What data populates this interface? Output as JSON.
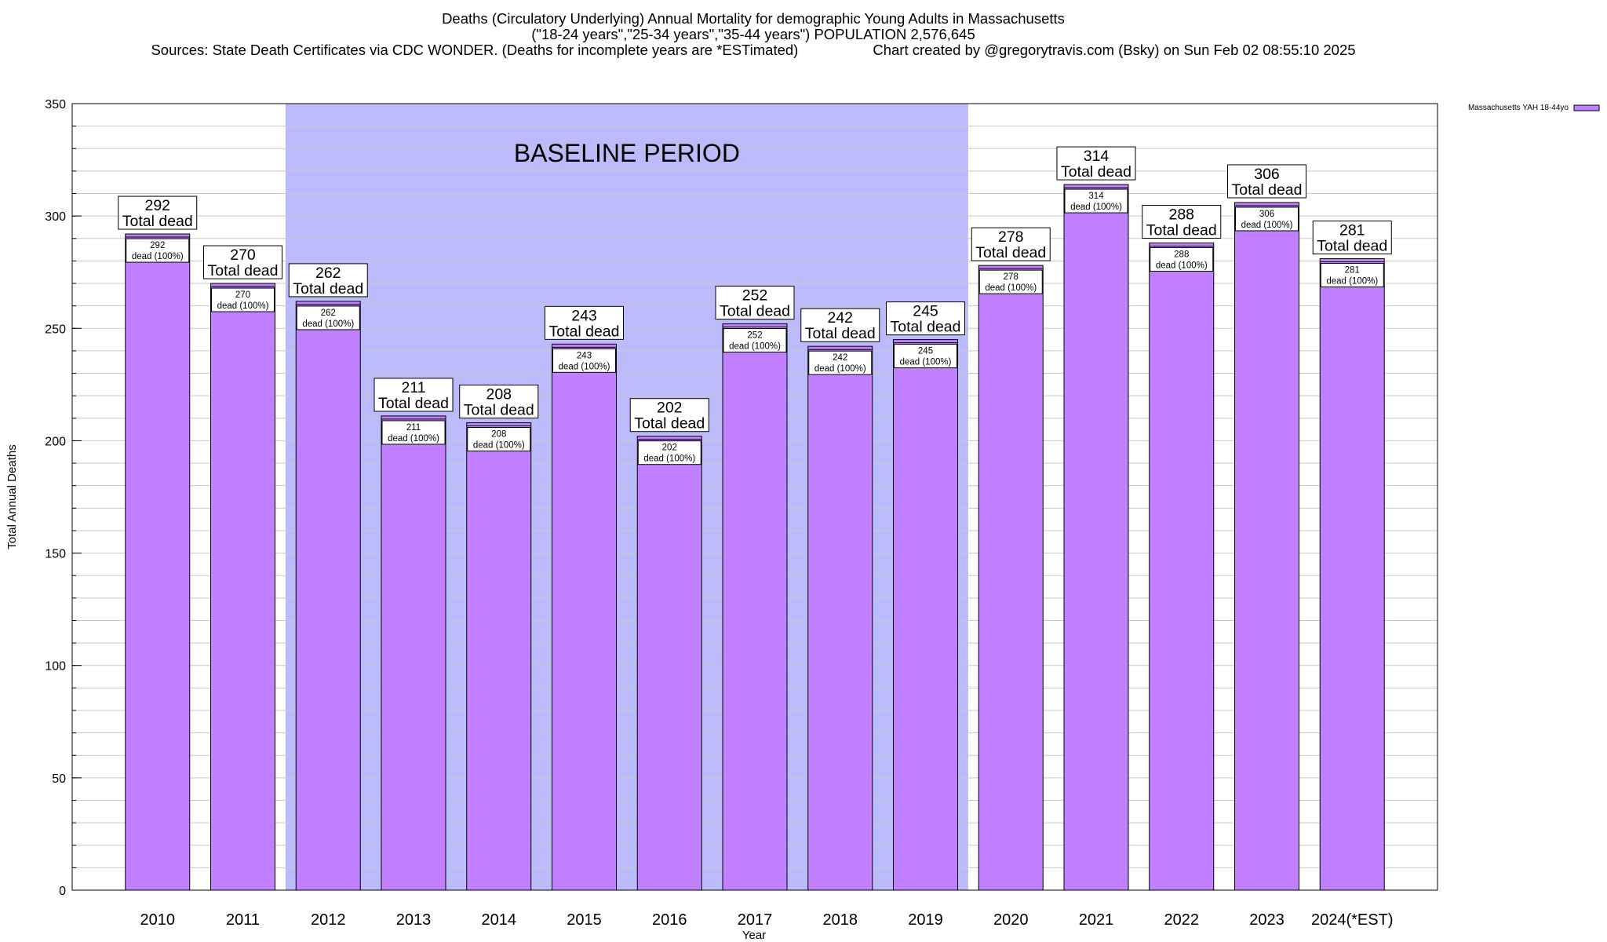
{
  "header": {
    "title_line1": "Deaths (Circulatory Underlying) Annual Mortality for demographic Young Adults in Massachusetts",
    "title_line2": "(\"18-24 years\",\"25-34 years\",\"35-44 years\") POPULATION 2,576,645",
    "sources": "Sources: State Death Certificates via CDC WONDER. (Deaths for incomplete years are *ESTimated)",
    "credit": "Chart created by @gregorytravis.com (Bsky) on Sun Feb 02 08:55:10 2025"
  },
  "chart_data": {
    "type": "bar",
    "title": "Deaths (Circulatory Underlying) Annual Mortality for demographic Young Adults in Massachusetts",
    "xlabel": "Year",
    "ylabel": "Total Annual Deaths",
    "ylim": [
      0,
      350
    ],
    "yticks": [
      0,
      50,
      100,
      150,
      200,
      250,
      300,
      350
    ],
    "y_minor_step": 10,
    "grid": true,
    "legend_position": "top-right",
    "categories": [
      "2010",
      "2011",
      "2012",
      "2013",
      "2014",
      "2015",
      "2016",
      "2017",
      "2018",
      "2019",
      "2020",
      "2021",
      "2022",
      "2023",
      "2024(*EST)"
    ],
    "series": [
      {
        "name": "Massachusetts YAH 18-44yo",
        "color": "#c080ff",
        "values": [
          292,
          270,
          262,
          211,
          208,
          243,
          202,
          252,
          242,
          245,
          278,
          314,
          288,
          306,
          281
        ]
      }
    ],
    "bar_label_caption": "Total dead",
    "inner_label_caption": "dead (100%)",
    "baseline_band": {
      "label": "BASELINE PERIOD",
      "from_category": "2012",
      "to_category": "2019",
      "color": "#bbbbfc"
    }
  }
}
